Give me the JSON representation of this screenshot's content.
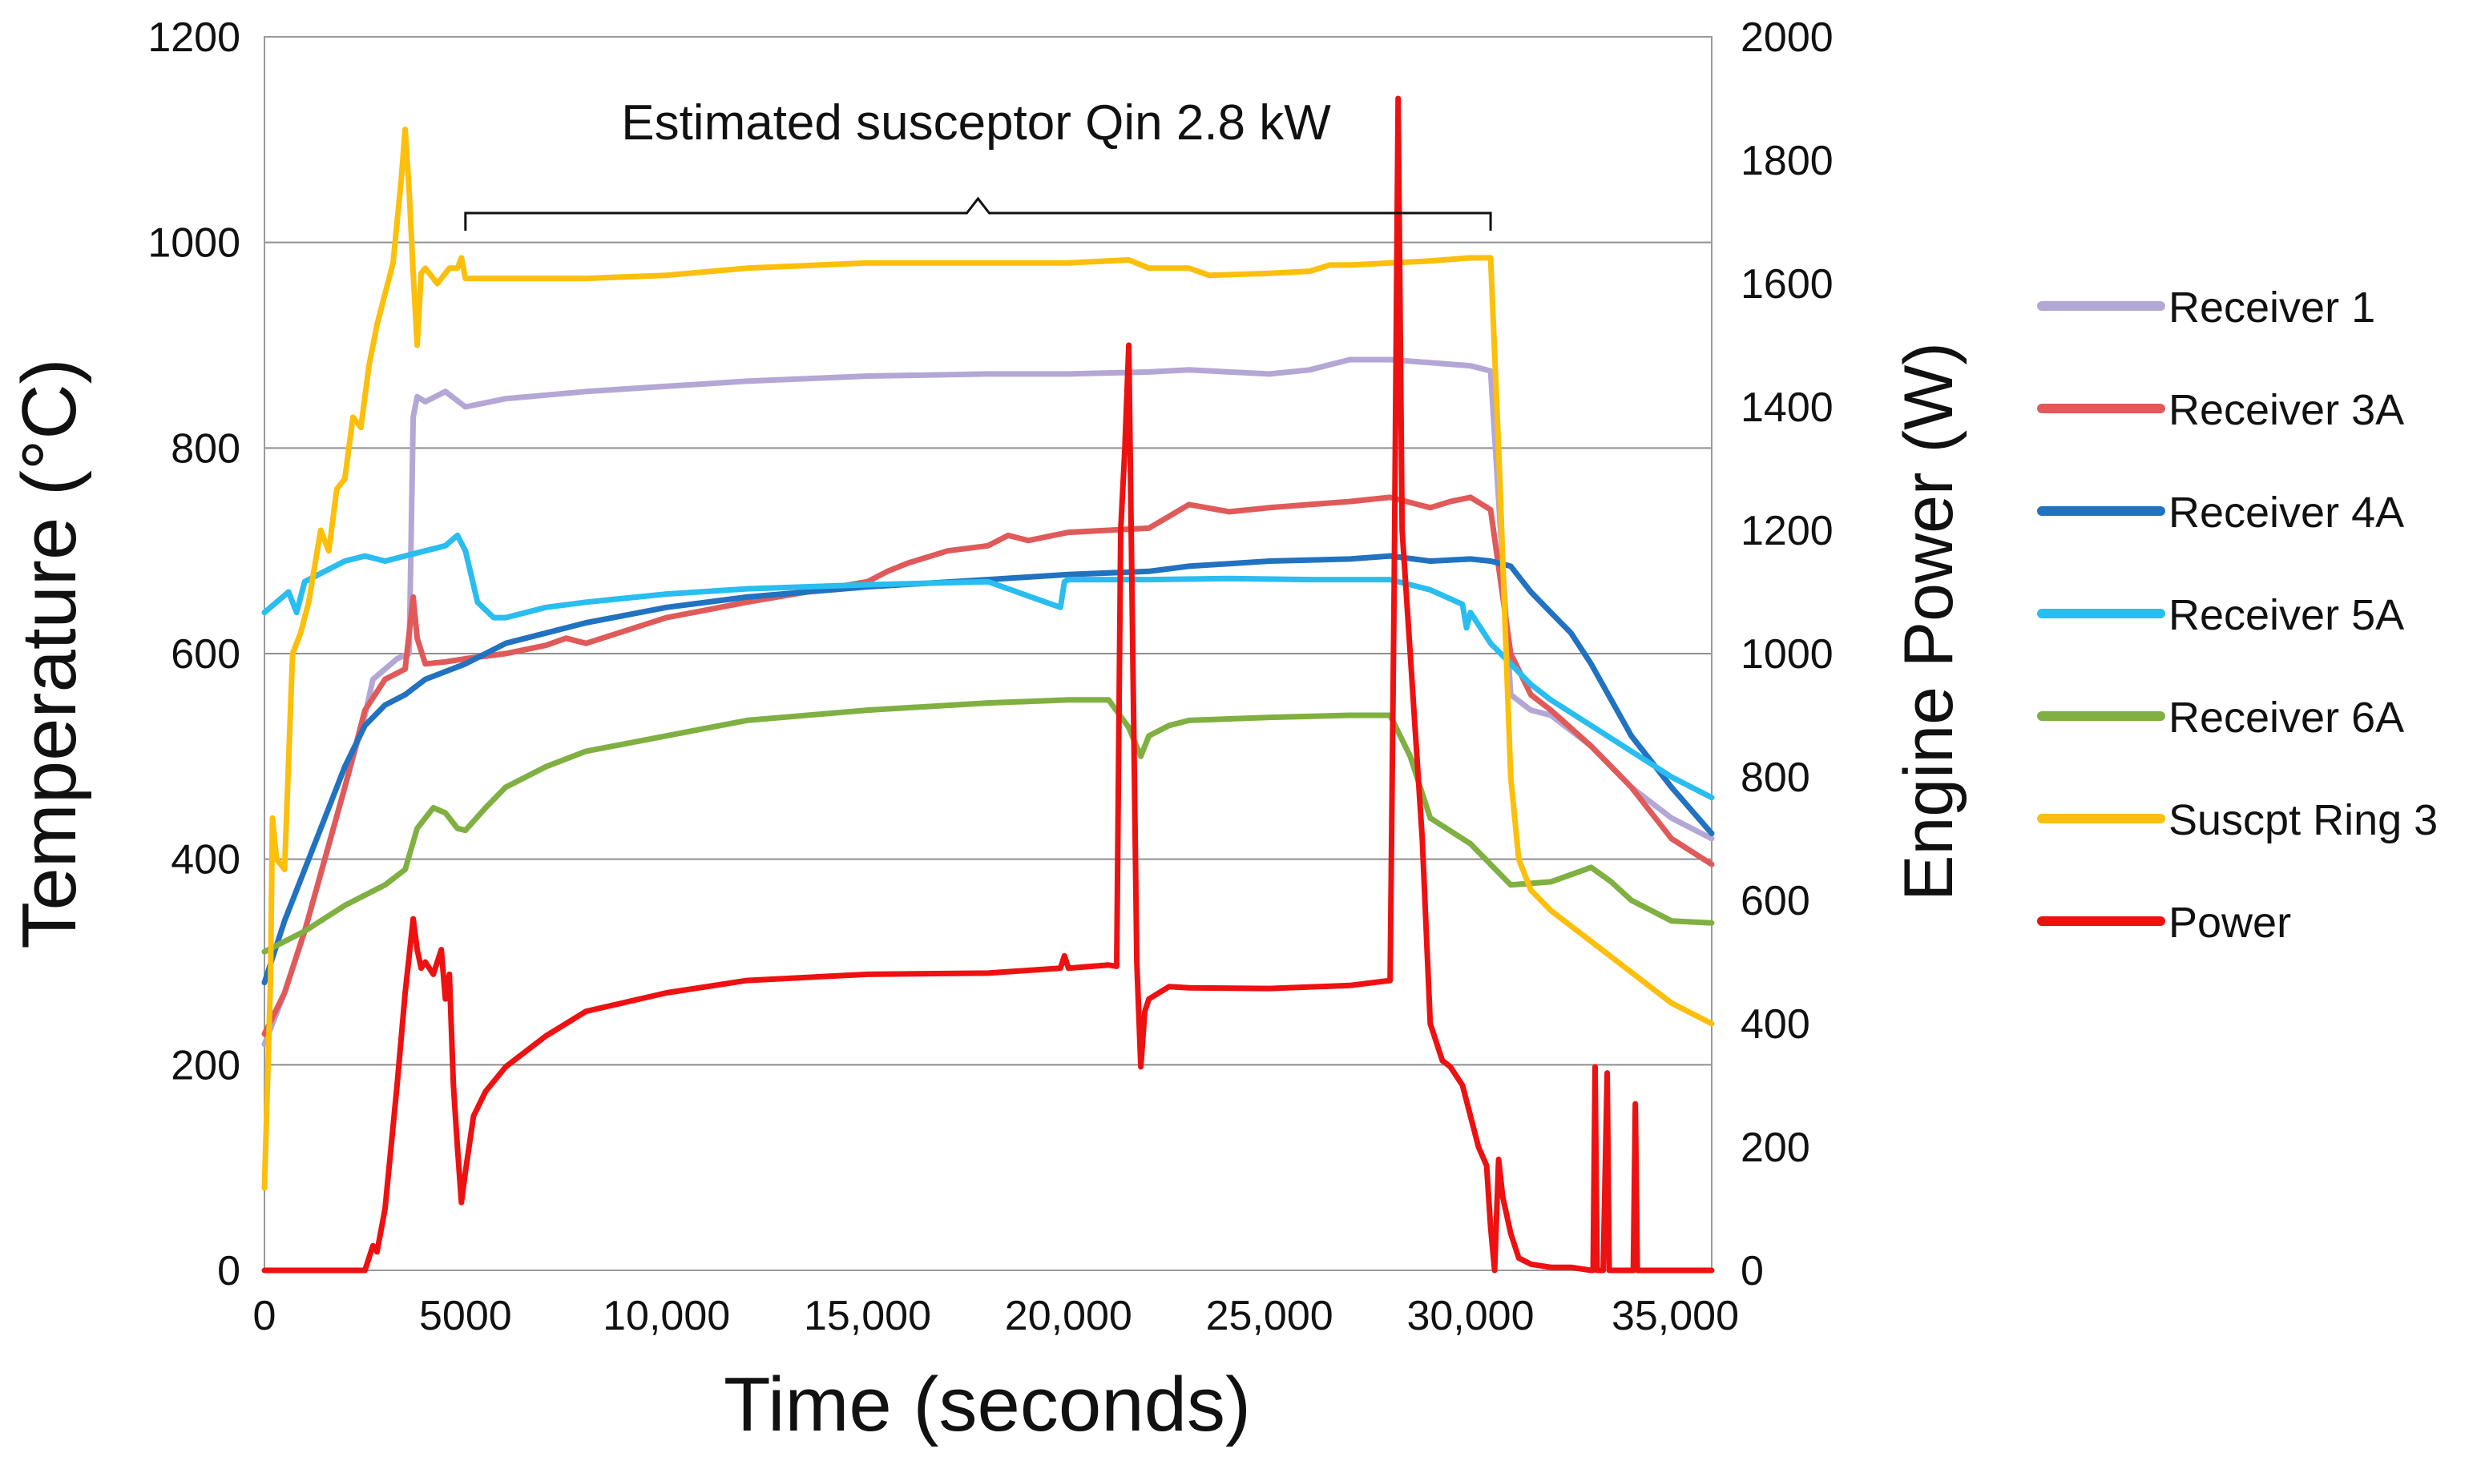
{
  "chart_data": {
    "type": "line",
    "title": "",
    "annotation": "Estimated susceptor Qin 2.8 kW",
    "annotation_range": [
      5000,
      30500
    ],
    "xlabel": "Time (seconds)",
    "ylabel_left": "Temperature (°C)",
    "ylabel_right": "Engine Power (W)",
    "xlim": [
      0,
      36000
    ],
    "ylim_left": [
      0,
      1200
    ],
    "ylim_right": [
      0,
      2000
    ],
    "grid": true,
    "legend_position": "right",
    "x_ticks": [
      {
        "value": 0,
        "label": "0"
      },
      {
        "value": 5000,
        "label": "5000"
      },
      {
        "value": 10000,
        "label": "10,000"
      },
      {
        "value": 15000,
        "label": "15,000"
      },
      {
        "value": 20000,
        "label": "20,000"
      },
      {
        "value": 25000,
        "label": "25,000"
      },
      {
        "value": 30000,
        "label": "30,000"
      },
      {
        "value": 35000,
        "label": "35,000"
      }
    ],
    "y_left_ticks": [
      {
        "value": 0,
        "label": "0"
      },
      {
        "value": 200,
        "label": "200"
      },
      {
        "value": 400,
        "label": "400"
      },
      {
        "value": 600,
        "label": "600"
      },
      {
        "value": 800,
        "label": "800"
      },
      {
        "value": 1000,
        "label": "1000"
      },
      {
        "value": 1200,
        "label": "1200"
      }
    ],
    "y_right_ticks": [
      {
        "value": 0,
        "label": "0"
      },
      {
        "value": 200,
        "label": "200"
      },
      {
        "value": 400,
        "label": "400"
      },
      {
        "value": 600,
        "label": "600"
      },
      {
        "value": 800,
        "label": "800"
      },
      {
        "value": 1000,
        "label": "1000"
      },
      {
        "value": 1200,
        "label": "1200"
      },
      {
        "value": 1400,
        "label": "1400"
      },
      {
        "value": 1600,
        "label": "1600"
      },
      {
        "value": 1800,
        "label": "1800"
      },
      {
        "value": 2000,
        "label": "2000"
      }
    ],
    "series": [
      {
        "name": "Receiver 1",
        "color": "#B4A7D6",
        "axis": "left",
        "x": [
          0,
          500,
          1000,
          1500,
          2000,
          2500,
          2700,
          3000,
          3300,
          3600,
          3700,
          3800,
          4000,
          4500,
          5000,
          6000,
          8000,
          10000,
          12000,
          15000,
          18000,
          20000,
          22000,
          23000,
          25000,
          26000,
          27000,
          28000,
          29000,
          30000,
          30500,
          31000,
          31500,
          32000,
          33000,
          34000,
          35000,
          36000
        ],
        "y": [
          220,
          270,
          330,
          400,
          470,
          540,
          575,
          585,
          595,
          600,
          830,
          850,
          845,
          855,
          840,
          848,
          855,
          860,
          865,
          870,
          872,
          872,
          874,
          876,
          872,
          876,
          886,
          886,
          883,
          880,
          875,
          560,
          545,
          540,
          510,
          470,
          440,
          420
        ]
      },
      {
        "name": "Receiver 3A",
        "color": "#E05A5A",
        "axis": "left",
        "x": [
          0,
          500,
          1000,
          1500,
          2000,
          2500,
          3000,
          3500,
          3600,
          3700,
          3800,
          4000,
          4500,
          5000,
          6000,
          7000,
          7500,
          8000,
          10000,
          12000,
          15000,
          15500,
          16000,
          17000,
          18000,
          18500,
          19000,
          20000,
          21000,
          22000,
          23000,
          24000,
          25000,
          26000,
          27000,
          28000,
          29000,
          29500,
          30000,
          30500,
          31000,
          31500,
          32000,
          33000,
          34000,
          35000,
          36000
        ],
        "y": [
          230,
          270,
          330,
          400,
          470,
          545,
          575,
          585,
          620,
          655,
          615,
          590,
          592,
          595,
          600,
          608,
          615,
          610,
          635,
          650,
          670,
          680,
          688,
          700,
          705,
          715,
          710,
          718,
          720,
          722,
          745,
          738,
          742,
          745,
          748,
          752,
          742,
          748,
          752,
          740,
          600,
          560,
          545,
          510,
          470,
          420,
          395
        ]
      },
      {
        "name": "Receiver 4A",
        "color": "#2172C0",
        "axis": "left",
        "x": [
          0,
          500,
          1000,
          1500,
          2000,
          2500,
          3000,
          3500,
          4000,
          5000,
          6000,
          7000,
          8000,
          10000,
          12000,
          15000,
          18000,
          20000,
          22000,
          23000,
          25000,
          27000,
          28000,
          29000,
          30000,
          30500,
          31000,
          31500,
          32000,
          32500,
          33000,
          34000,
          35000,
          36000
        ],
        "y": [
          280,
          340,
          390,
          440,
          490,
          530,
          550,
          560,
          575,
          590,
          610,
          620,
          630,
          645,
          655,
          665,
          672,
          677,
          680,
          685,
          690,
          692,
          695,
          690,
          692,
          690,
          685,
          660,
          640,
          620,
          590,
          520,
          470,
          425
        ]
      },
      {
        "name": "Receiver 5A",
        "color": "#29BDF0",
        "axis": "left",
        "x": [
          0,
          300,
          600,
          800,
          1000,
          1500,
          2000,
          2500,
          3000,
          3500,
          4000,
          4500,
          4800,
          5000,
          5300,
          5700,
          6000,
          7000,
          8000,
          10000,
          12000,
          15000,
          18000,
          19800,
          19900,
          20000,
          22000,
          24000,
          26000,
          28000,
          29000,
          29800,
          29900,
          30000,
          30500,
          31000,
          31500,
          32000,
          33000,
          34000,
          35000,
          36000
        ],
        "y": [
          640,
          650,
          660,
          640,
          670,
          680,
          690,
          695,
          690,
          695,
          700,
          705,
          715,
          700,
          650,
          635,
          635,
          645,
          650,
          658,
          663,
          667,
          670,
          645,
          670,
          672,
          672,
          673,
          672,
          672,
          662,
          648,
          625,
          640,
          610,
          590,
          570,
          555,
          530,
          505,
          480,
          460
        ]
      },
      {
        "name": "Receiver 6A",
        "color": "#7FB041",
        "axis": "left",
        "x": [
          0,
          1000,
          2000,
          3000,
          3500,
          3800,
          4200,
          4500,
          4800,
          5000,
          5500,
          6000,
          7000,
          8000,
          10000,
          12000,
          15000,
          18000,
          20000,
          21000,
          21500,
          21800,
          22000,
          22500,
          23000,
          25000,
          27000,
          28000,
          28500,
          29000,
          30000,
          31000,
          32000,
          32500,
          33000,
          33500,
          34000,
          35000,
          36000
        ],
        "y": [
          310,
          330,
          355,
          375,
          390,
          430,
          450,
          445,
          430,
          428,
          450,
          470,
          490,
          505,
          520,
          535,
          545,
          552,
          555,
          555,
          528,
          500,
          520,
          530,
          535,
          538,
          540,
          540,
          500,
          440,
          415,
          375,
          378,
          385,
          392,
          378,
          360,
          340,
          338
        ]
      },
      {
        "name": "Suscpt Ring 3",
        "color": "#FBBF0C",
        "axis": "left",
        "x": [
          0,
          150,
          200,
          300,
          500,
          700,
          900,
          1100,
          1400,
          1600,
          1800,
          2000,
          2200,
          2400,
          2600,
          2800,
          3000,
          3200,
          3400,
          3500,
          3600,
          3700,
          3800,
          3900,
          4000,
          4300,
          4600,
          4800,
          4900,
          5000,
          6000,
          8000,
          10000,
          12000,
          15000,
          18000,
          20000,
          21500,
          22000,
          23000,
          23500,
          25000,
          26000,
          26500,
          27000,
          28000,
          29000,
          30000,
          30500,
          30700,
          31000,
          31200,
          31500,
          32000,
          33000,
          34000,
          35000,
          36000
        ],
        "y": [
          80,
          280,
          440,
          400,
          390,
          600,
          620,
          650,
          720,
          700,
          760,
          770,
          830,
          820,
          880,
          920,
          950,
          980,
          1060,
          1110,
          1050,
          970,
          900,
          970,
          975,
          960,
          975,
          975,
          985,
          965,
          965,
          965,
          968,
          975,
          980,
          980,
          980,
          983,
          975,
          975,
          968,
          970,
          972,
          978,
          978,
          980,
          982,
          985,
          985,
          800,
          480,
          400,
          370,
          350,
          320,
          290,
          260,
          240
        ]
      },
      {
        "name": "Power",
        "color": "#EE1111",
        "axis": "right",
        "x": [
          0,
          2500,
          2600,
          2700,
          2800,
          3000,
          3300,
          3500,
          3700,
          3800,
          3900,
          4000,
          4200,
          4400,
          4500,
          4600,
          4700,
          4800,
          4900,
          5000,
          5200,
          5500,
          6000,
          7000,
          8000,
          10000,
          12000,
          15000,
          18000,
          19800,
          19900,
          20000,
          21000,
          21200,
          21300,
          21400,
          21500,
          21600,
          21700,
          21800,
          21900,
          22000,
          22500,
          23000,
          25000,
          27000,
          28000,
          28100,
          28200,
          28300,
          28500,
          28800,
          29000,
          29300,
          29500,
          29800,
          30000,
          30200,
          30400,
          30500,
          30600,
          30700,
          30800,
          31000,
          31200,
          31500,
          32000,
          32500,
          33000,
          33050,
          33100,
          33150,
          33300,
          33400,
          33450,
          33500,
          33600,
          34000,
          34050,
          34100,
          34150,
          34200,
          36000
        ],
        "y": [
          0,
          0,
          20,
          40,
          30,
          100,
          300,
          450,
          570,
          520,
          490,
          500,
          480,
          520,
          440,
          480,
          300,
          200,
          110,
          160,
          250,
          290,
          330,
          380,
          420,
          450,
          470,
          480,
          482,
          490,
          510,
          490,
          495,
          493,
          1200,
          1330,
          1500,
          1000,
          500,
          330,
          420,
          440,
          460,
          458,
          457,
          462,
          470,
          1100,
          1900,
          1200,
          1000,
          700,
          400,
          340,
          330,
          300,
          250,
          200,
          170,
          70,
          0,
          180,
          120,
          60,
          20,
          10,
          5,
          5,
          0,
          0,
          330,
          0,
          0,
          320,
          0,
          0,
          0,
          0,
          0,
          270,
          0,
          0,
          0
        ]
      }
    ]
  }
}
